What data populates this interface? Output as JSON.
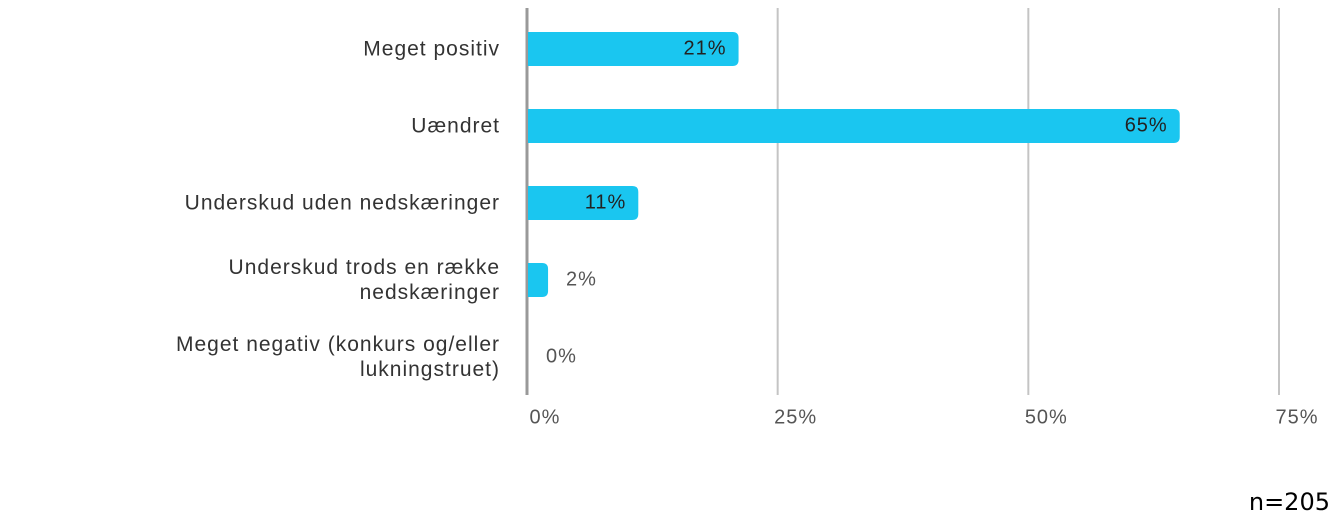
{
  "chart_data": {
    "type": "barh",
    "categories": [
      "Meget positiv",
      "Uændret",
      "Underskud uden nedskæringer",
      "Underskud trods en række\nnedskæringer",
      "Meget negativ (konkurs og/eller\nlukningstruet)"
    ],
    "values": [
      21,
      65,
      11,
      2,
      0
    ],
    "value_labels": [
      "21%",
      "65%",
      "11%",
      "2%",
      "0%"
    ],
    "color": "#1ac6f0",
    "xlim": [
      0,
      75
    ],
    "xticks": [
      {
        "value": 0,
        "label": "0%"
      },
      {
        "value": 25,
        "label": "25%"
      },
      {
        "value": 50,
        "label": "50%"
      },
      {
        "value": 75,
        "label": "75%"
      }
    ],
    "grid": true,
    "note": "n=205"
  }
}
